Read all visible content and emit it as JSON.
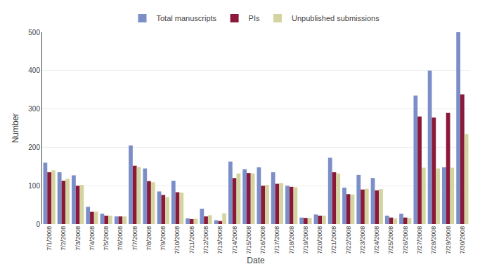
{
  "chart_data": {
    "type": "bar",
    "xlabel": "Date",
    "ylabel": "Number",
    "categories": [
      "7/1/2008",
      "7/2/2008",
      "7/3/2008",
      "7/4/2008",
      "7/5/2008",
      "7/6/2008",
      "7/7/2008",
      "7/8/2008",
      "7/9/2008",
      "7/10/2008",
      "7/11/2008",
      "7/12/2008",
      "7/13/2008",
      "7/14/2008",
      "7/15/2008",
      "7/16/2008",
      "7/17/2008",
      "7/18/2008",
      "7/19/2008",
      "7/20/2008",
      "7/21/2008",
      "7/22/2008",
      "7/23/2008",
      "7/24/2008",
      "7/25/2008",
      "7/26/2008",
      "7/27/2008",
      "7/28/2008",
      "7/29/2008",
      "7/30/2008"
    ],
    "series": [
      {
        "name": "Total manuscripts",
        "color": "#7B8EC8",
        "values": [
          160,
          135,
          127,
          45,
          27,
          20,
          205,
          145,
          85,
          113,
          15,
          40,
          10,
          163,
          143,
          148,
          135,
          100,
          17,
          25,
          173,
          95,
          128,
          120,
          22,
          27,
          335,
          400,
          148,
          500
        ]
      },
      {
        "name": "PIs",
        "color": "#8B1A3A",
        "values": [
          135,
          113,
          100,
          32,
          22,
          20,
          152,
          112,
          76,
          83,
          13,
          20,
          8,
          120,
          133,
          100,
          105,
          97,
          16,
          22,
          135,
          78,
          90,
          88,
          17,
          17,
          280,
          278,
          290,
          338
        ]
      },
      {
        "name": "Unpublished submissions",
        "color": "#D4D4A0",
        "values": [
          140,
          118,
          102,
          32,
          22,
          20,
          149,
          109,
          70,
          82,
          14,
          23,
          28,
          132,
          132,
          102,
          107,
          96,
          16,
          22,
          132,
          77,
          92,
          91,
          15,
          16,
          147,
          145,
          147,
          235
        ]
      }
    ],
    "ylim": [
      0,
      500
    ],
    "yticks": [
      0,
      100,
      200,
      300,
      400,
      500
    ],
    "grid": true,
    "legend": "top"
  }
}
